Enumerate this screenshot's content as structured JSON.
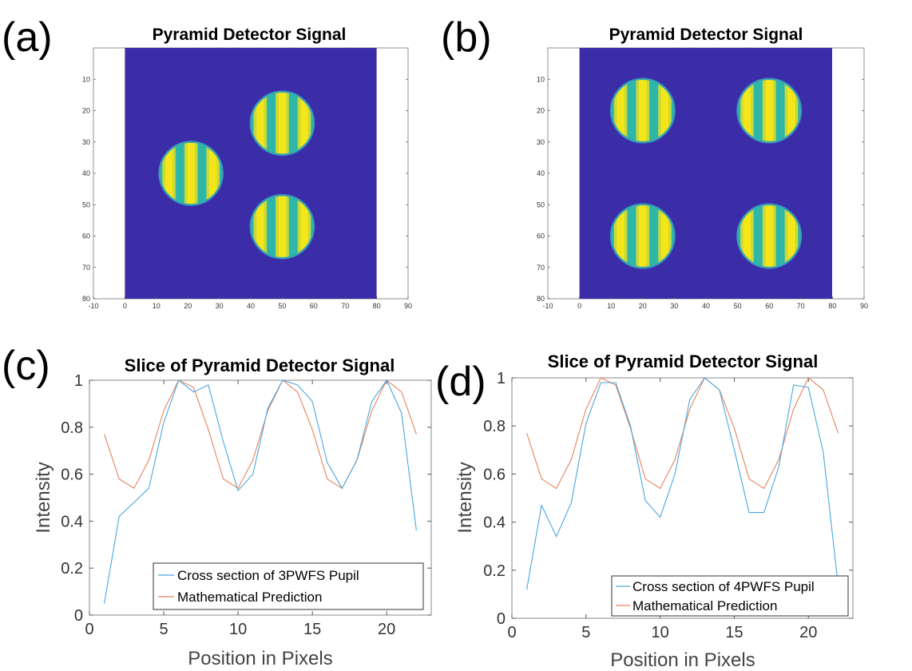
{
  "panels": {
    "a": "(a)",
    "b": "(b)",
    "c": "(c)",
    "d": "(d)"
  },
  "colors": {
    "background_map": "#3b2da8",
    "fringe_bright": "#f5e61a",
    "fringe_mid": "#2eb7a8",
    "series1": "#4aa6e0",
    "series2": "#e8835c"
  },
  "chart_data": [
    {
      "type": "heatmap",
      "title": "Pyramid Detector Signal",
      "xlim": [
        -10,
        90
      ],
      "ylim": [
        0,
        80
      ],
      "x_ticks": [
        -10,
        0,
        10,
        20,
        30,
        40,
        50,
        60,
        70,
        80,
        90
      ],
      "y_ticks": [
        10,
        20,
        30,
        40,
        50,
        60,
        70,
        80
      ],
      "image_extent": [
        0,
        80
      ],
      "pupils": [
        {
          "cx": 50,
          "cy": 24,
          "r": 10
        },
        {
          "cx": 21,
          "cy": 40,
          "r": 10
        },
        {
          "cx": 50,
          "cy": 57,
          "r": 10
        }
      ],
      "fringe_period": 7
    },
    {
      "type": "heatmap",
      "title": "Pyramid Detector Signal",
      "xlim": [
        -10,
        90
      ],
      "ylim": [
        0,
        80
      ],
      "x_ticks": [
        -10,
        0,
        10,
        20,
        30,
        40,
        50,
        60,
        70,
        80,
        90
      ],
      "y_ticks": [
        10,
        20,
        30,
        40,
        50,
        60,
        70,
        80
      ],
      "image_extent": [
        0,
        80
      ],
      "pupils": [
        {
          "cx": 20,
          "cy": 20,
          "r": 10
        },
        {
          "cx": 60,
          "cy": 20,
          "r": 10
        },
        {
          "cx": 20,
          "cy": 60,
          "r": 10
        },
        {
          "cx": 60,
          "cy": 60,
          "r": 10
        }
      ],
      "fringe_period": 7
    },
    {
      "type": "line",
      "title": "Slice of Pyramid Detector Signal",
      "xlabel": "Position in Pixels",
      "ylabel": "Intensity",
      "xlim": [
        0,
        23
      ],
      "ylim": [
        0,
        1
      ],
      "x_ticks": [
        0,
        5,
        10,
        15,
        20
      ],
      "y_ticks": [
        0,
        0.2,
        0.4,
        0.6,
        0.8,
        1
      ],
      "legend_position": "bottom-right",
      "x": [
        1,
        2,
        3,
        4,
        5,
        6,
        7,
        8,
        9,
        10,
        11,
        12,
        13,
        14,
        15,
        16,
        17,
        18,
        19,
        20,
        21,
        22
      ],
      "series": [
        {
          "name": "Cross section of 3PWFS Pupil",
          "values": [
            0.05,
            0.42,
            0.48,
            0.54,
            0.82,
            1.0,
            0.95,
            0.98,
            0.74,
            0.53,
            0.6,
            0.88,
            1.0,
            0.98,
            0.91,
            0.65,
            0.54,
            0.66,
            0.91,
            1.0,
            0.86,
            0.36
          ]
        },
        {
          "name": "Mathematical Prediction",
          "values": [
            0.77,
            0.58,
            0.54,
            0.66,
            0.87,
            1.0,
            0.97,
            0.79,
            0.58,
            0.54,
            0.66,
            0.87,
            1.0,
            0.95,
            0.79,
            0.58,
            0.54,
            0.66,
            0.87,
            1.0,
            0.95,
            0.77
          ]
        }
      ]
    },
    {
      "type": "line",
      "title": "Slice of Pyramid Detector Signal",
      "xlabel": "Position in Pixels",
      "ylabel": "Intensity",
      "xlim": [
        0,
        23
      ],
      "ylim": [
        0,
        1
      ],
      "x_ticks": [
        0,
        5,
        10,
        15,
        20
      ],
      "y_ticks": [
        0,
        0.2,
        0.4,
        0.6,
        0.8,
        1
      ],
      "legend_position": "bottom-right",
      "x": [
        1,
        2,
        3,
        4,
        5,
        6,
        7,
        8,
        9,
        10,
        11,
        12,
        13,
        14,
        15,
        16,
        17,
        18,
        19,
        20,
        21,
        22
      ],
      "series": [
        {
          "name": "Cross section of 4PWFS Pupil",
          "values": [
            0.12,
            0.47,
            0.34,
            0.48,
            0.81,
            0.98,
            0.98,
            0.8,
            0.49,
            0.42,
            0.6,
            0.91,
            1.0,
            0.95,
            0.7,
            0.44,
            0.44,
            0.63,
            0.97,
            0.96,
            0.69,
            0.14
          ]
        },
        {
          "name": "Mathematical Prediction",
          "values": [
            0.77,
            0.58,
            0.54,
            0.66,
            0.87,
            1.0,
            0.97,
            0.79,
            0.58,
            0.54,
            0.66,
            0.87,
            1.0,
            0.95,
            0.79,
            0.58,
            0.54,
            0.66,
            0.87,
            1.0,
            0.95,
            0.77
          ]
        }
      ]
    }
  ]
}
